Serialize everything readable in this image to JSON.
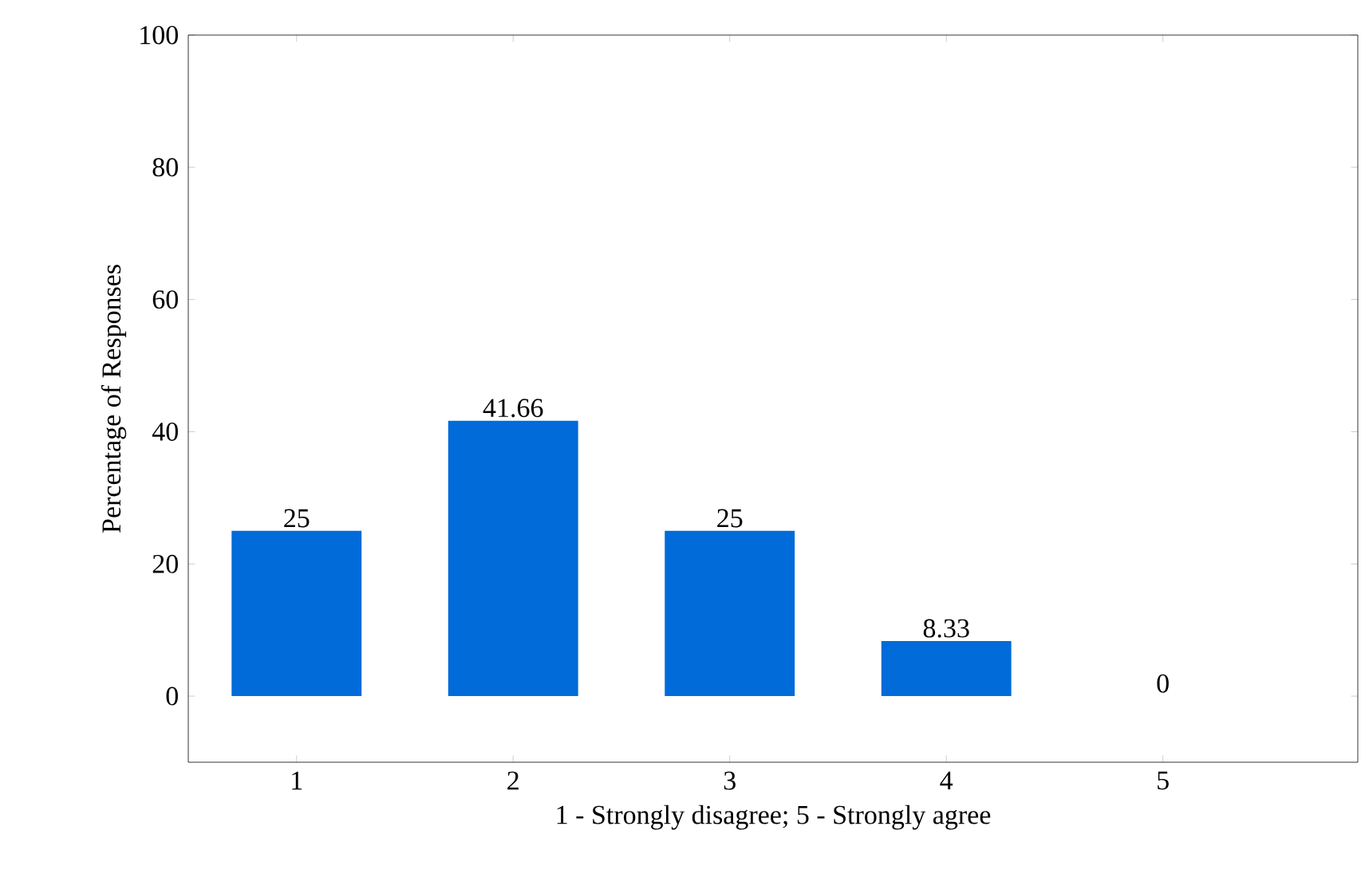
{
  "chart_data": {
    "type": "bar",
    "xlabel": "1 - Strongly disagree; 5 - Strongly agree",
    "ylabel": "Percentage of Responses",
    "x": [
      1,
      2,
      3,
      4,
      5
    ],
    "values": [
      25,
      41.66,
      25,
      8.33,
      0
    ],
    "color": "#006bd9",
    "xlim": [
      0.5,
      5.9
    ],
    "xticks": [
      1,
      2,
      3,
      4,
      5
    ],
    "ylim": [
      -10,
      100
    ],
    "yticks": [
      0,
      20,
      40,
      60,
      80,
      100
    ],
    "data_labels": true
  }
}
